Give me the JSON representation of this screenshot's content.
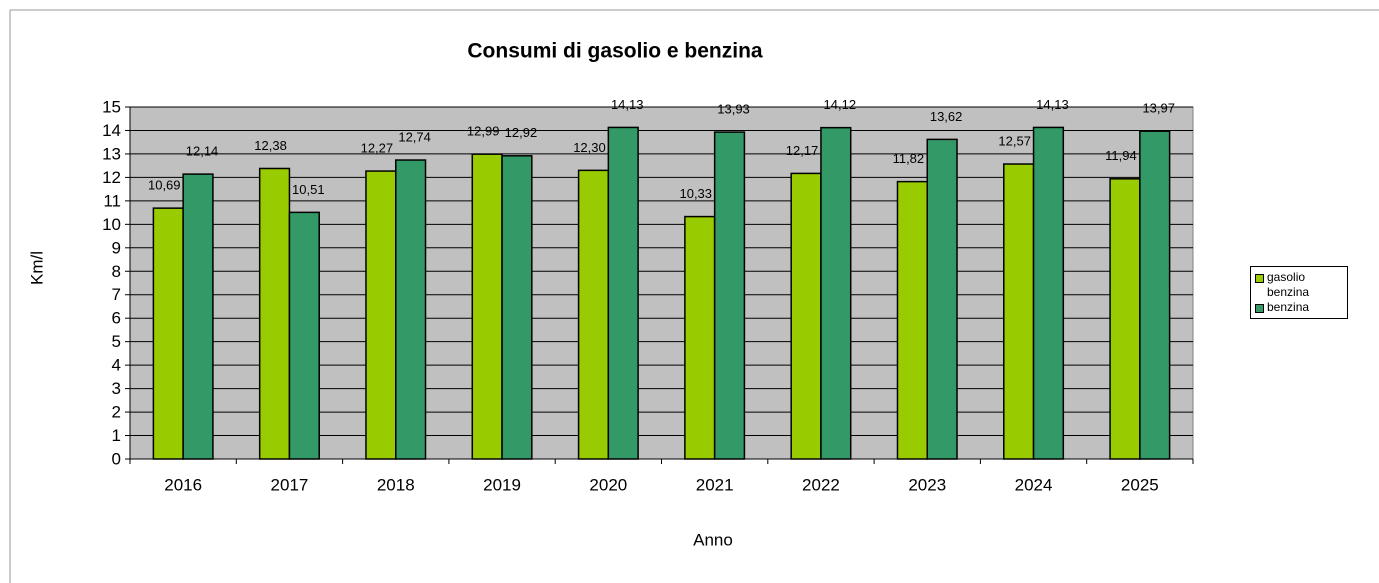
{
  "chart_data": {
    "type": "bar",
    "title": "Consumi di gasolio e benzina",
    "x_label": "Anno",
    "y_label": "Km/l",
    "categories": [
      "2016",
      "2017",
      "2018",
      "2019",
      "2020",
      "2021",
      "2022",
      "2023",
      "2024",
      "2025"
    ],
    "series": [
      {
        "name": "gasolio benzina",
        "color": "#99cc00",
        "values": [
          10.69,
          12.38,
          12.27,
          12.99,
          12.3,
          10.33,
          12.17,
          11.82,
          12.57,
          11.94
        ],
        "value_labels": [
          "10,69",
          "12,38",
          "12,27",
          "12,99",
          "12,30",
          "10,33",
          "12,17",
          "11,82",
          "12,57",
          "11,94"
        ]
      },
      {
        "name": "benzina",
        "color": "#339966",
        "values": [
          12.14,
          10.51,
          12.74,
          12.92,
          14.13,
          13.93,
          14.12,
          13.62,
          14.13,
          13.97
        ],
        "value_labels": [
          "12,14",
          "10,51",
          "12,74",
          "12,92",
          "14,13",
          "13,93",
          "14,12",
          "13,62",
          "14,13",
          "13,97"
        ]
      }
    ],
    "ylim": [
      0,
      15
    ],
    "yticks": [
      0,
      1,
      2,
      3,
      4,
      5,
      6,
      7,
      8,
      9,
      10,
      11,
      12,
      13,
      14,
      15
    ],
    "grid": true,
    "legend": "right",
    "plot_background": "#c0c0c0"
  }
}
